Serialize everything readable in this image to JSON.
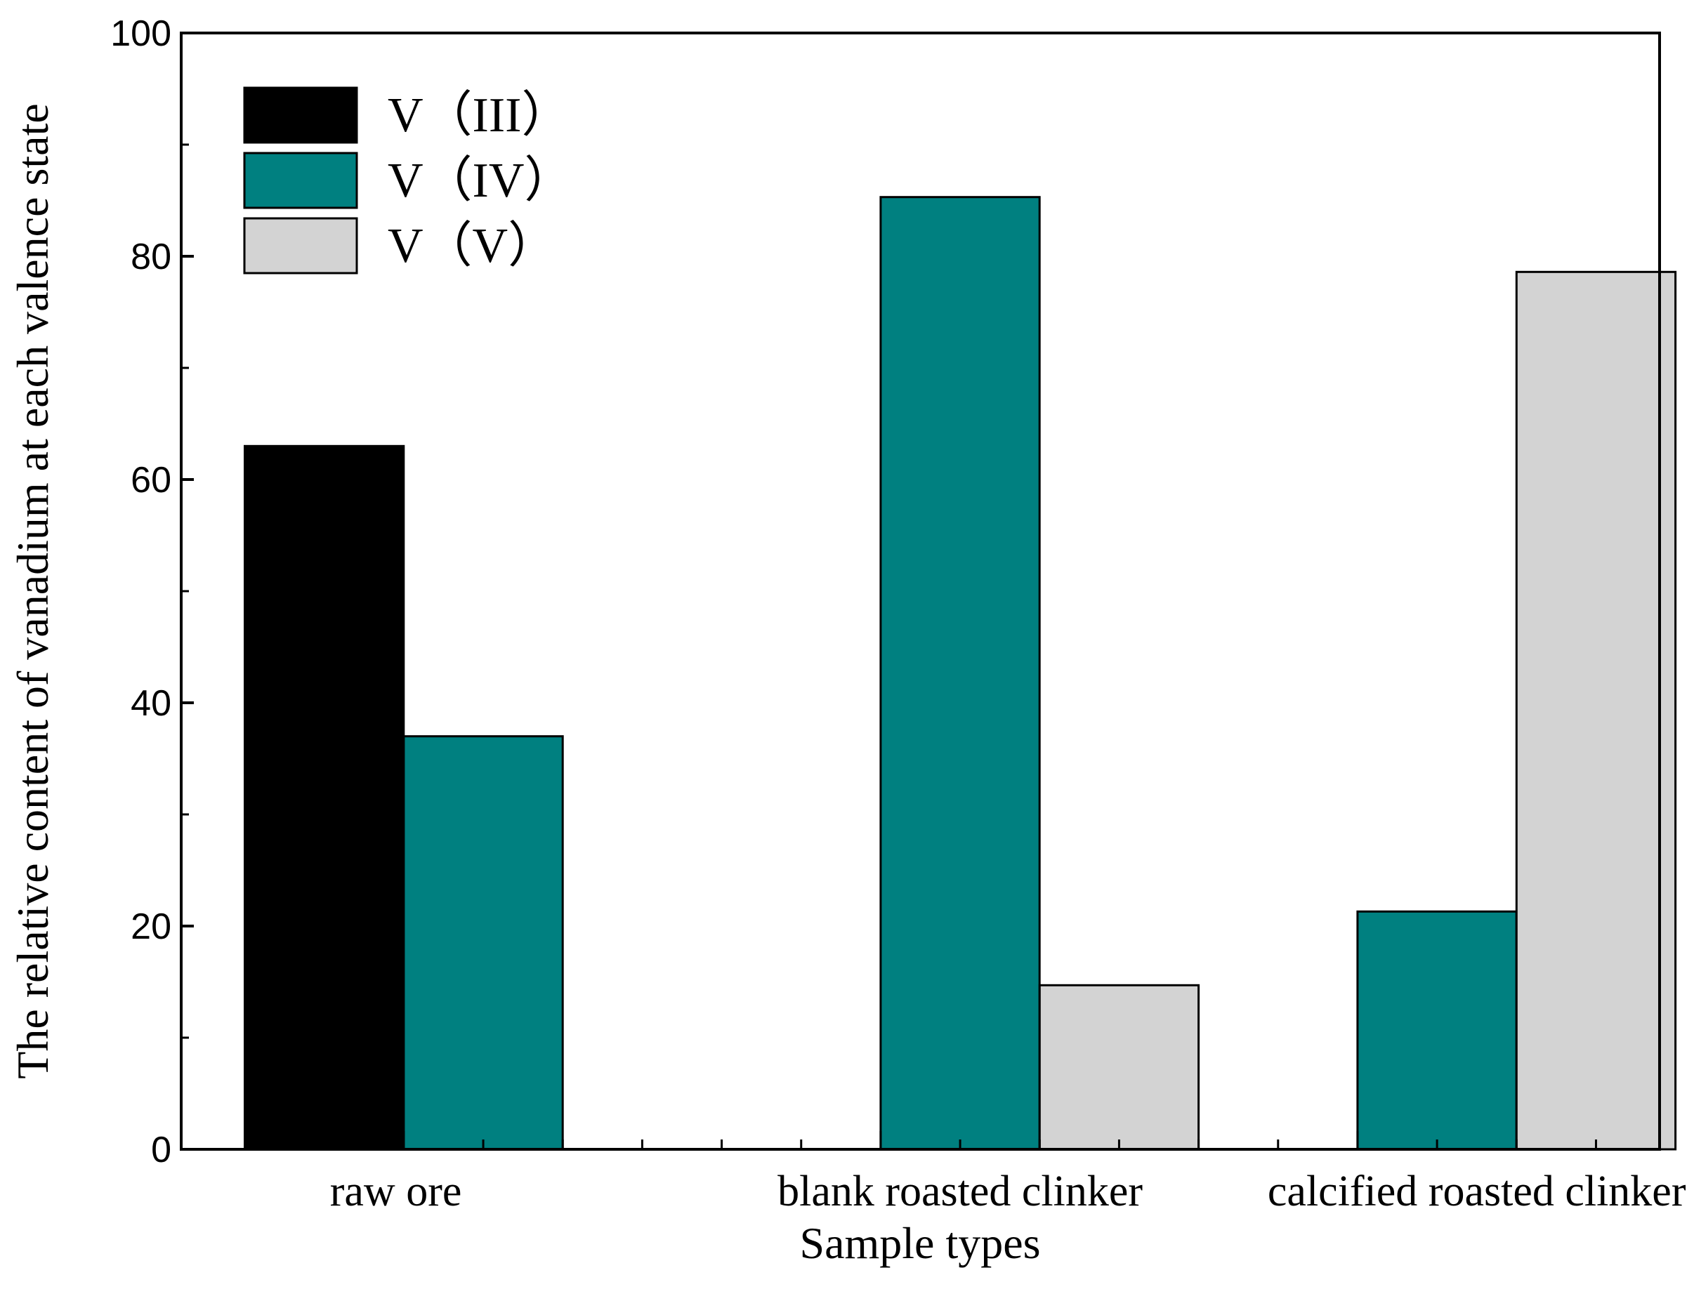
{
  "chart_data": {
    "type": "bar",
    "categories": [
      "raw ore",
      "blank roasted clinker",
      "calcified roasted clinker"
    ],
    "series": [
      {
        "name": "V（III）",
        "values": [
          63,
          0,
          0
        ],
        "color": "#000000"
      },
      {
        "name": "V（IV）",
        "values": [
          37,
          85.3,
          21.3
        ],
        "color": "#008080"
      },
      {
        "name": "V（V）",
        "values": [
          0,
          14.7,
          78.6
        ],
        "color": "#d3d3d3"
      }
    ],
    "title": "",
    "xlabel": "Sample types",
    "ylabel": "The relative content of vanadium at each valence state",
    "ylim": [
      0,
      100
    ],
    "yticks": [
      "0",
      "20",
      "40",
      "60",
      "80",
      "100"
    ],
    "legend": "top-left",
    "grid": false
  }
}
